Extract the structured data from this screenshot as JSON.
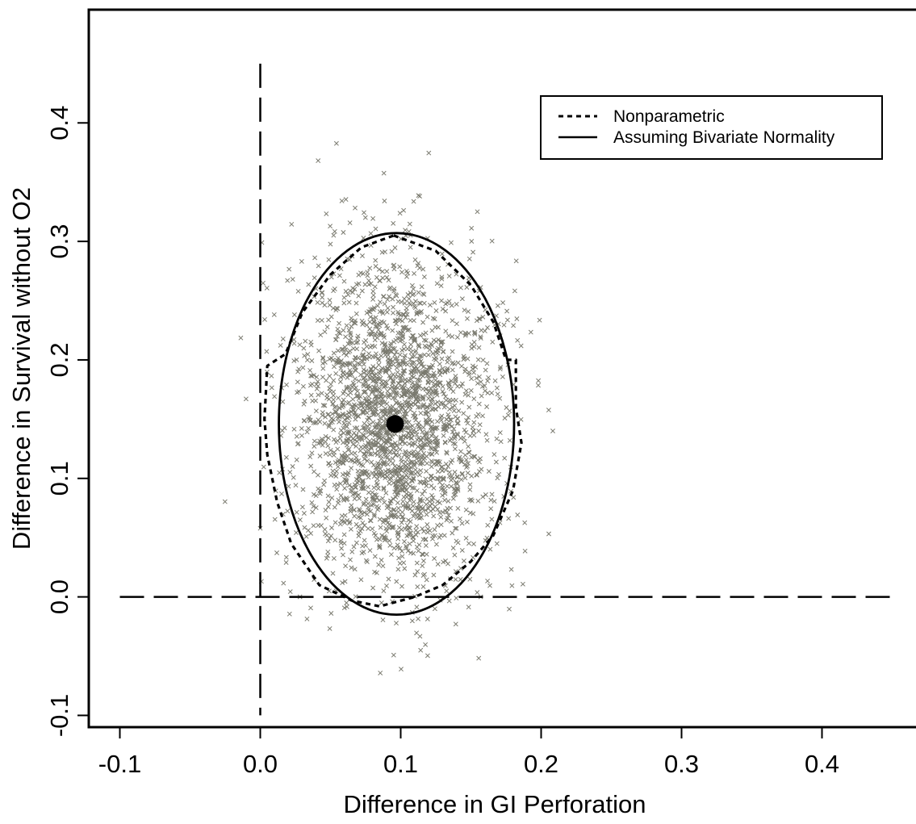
{
  "chart_data": {
    "type": "scatter",
    "xlabel": "Difference in GI Perforation",
    "ylabel": "Difference in Survival without O2",
    "xlim": [
      -0.1,
      0.45
    ],
    "ylim": [
      -0.12,
      0.47
    ],
    "x_ticks": [
      "-0.1",
      "0.0",
      "0.1",
      "0.2",
      "0.3",
      "0.4"
    ],
    "y_ticks": [
      "-0.1",
      "0.0",
      "0.1",
      "0.2",
      "0.3",
      "0.4"
    ],
    "x_tick_values": [
      -0.1,
      0.0,
      0.1,
      0.2,
      0.3,
      0.4
    ],
    "y_tick_values": [
      -0.1,
      0.0,
      0.1,
      0.2,
      0.3,
      0.4
    ],
    "grid": false,
    "legend_position": "top-right",
    "legend": [
      "Nonparametric",
      "Assuming Bivariate Normality"
    ],
    "point_estimate": {
      "x": 0.096,
      "y": 0.146
    },
    "point_cloud": {
      "marker": "x",
      "color": "#7a7a6f",
      "n": 2500,
      "mean": [
        0.096,
        0.146
      ],
      "sd": [
        0.035,
        0.068
      ]
    },
    "normal_ellipse": {
      "center": [
        0.097,
        0.146
      ],
      "x_range": [
        0.0135,
        0.181
      ],
      "y_range": [
        -0.0145,
        0.3075
      ]
    },
    "nonparametric_region": [
      [
        0.095,
        0.305
      ],
      [
        0.125,
        0.292
      ],
      [
        0.15,
        0.263
      ],
      [
        0.166,
        0.232
      ],
      [
        0.175,
        0.2
      ],
      [
        0.182,
        0.2
      ],
      [
        0.182,
        0.16
      ],
      [
        0.186,
        0.13
      ],
      [
        0.18,
        0.09
      ],
      [
        0.166,
        0.052
      ],
      [
        0.15,
        0.03
      ],
      [
        0.13,
        0.01
      ],
      [
        0.11,
        0.0
      ],
      [
        0.085,
        -0.008
      ],
      [
        0.065,
        -0.003
      ],
      [
        0.042,
        0.01
      ],
      [
        0.022,
        0.045
      ],
      [
        0.012,
        0.08
      ],
      [
        0.005,
        0.12
      ],
      [
        0.003,
        0.15
      ],
      [
        0.005,
        0.195
      ],
      [
        0.018,
        0.205
      ],
      [
        0.03,
        0.24
      ],
      [
        0.05,
        0.272
      ],
      [
        0.072,
        0.295
      ]
    ],
    "reference_lines": [
      {
        "orientation": "vertical",
        "x": 0.0,
        "y_range": [
          -0.1,
          0.45
        ],
        "style": "long-dash"
      },
      {
        "orientation": "horizontal",
        "y": 0.0,
        "x_range": [
          -0.1,
          0.45
        ],
        "style": "long-dash"
      }
    ],
    "series": [
      {
        "name": "Nonparametric",
        "style": "dotted"
      },
      {
        "name": "Assuming Bivariate Normality",
        "style": "solid"
      }
    ]
  }
}
